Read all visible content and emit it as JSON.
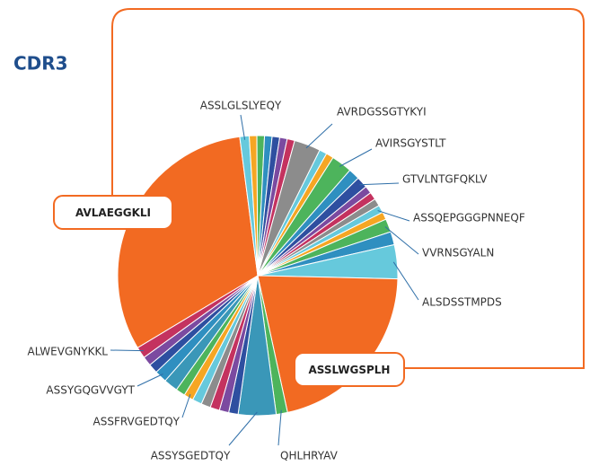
{
  "chart_data": {
    "type": "pie",
    "title": "CDR3",
    "categories": [
      "AVLAEGGKLI",
      "ASSLGLSLYEQY",
      null,
      null,
      null,
      null,
      null,
      null,
      "AVRDGSSGTYKYI",
      null,
      null,
      "AVIRSGYSTLT",
      null,
      "GTVLNTGFQKLV",
      null,
      null,
      null,
      "ASSQEPGGGPNNEQF",
      null,
      "VVRNSGYALN",
      null,
      "ALSDSSTMPDS",
      "ASSLWGSPLH",
      "QHLHRYAV",
      "ASSYSGEDTQY",
      null,
      null,
      null,
      null,
      null,
      "ASSFRVGEDTQY",
      null,
      null,
      "ASSYGQGVVGYT",
      null,
      null,
      "ALWEVGNYKKL"
    ],
    "values": [
      29,
      1,
      0.8,
      0.8,
      0.8,
      0.8,
      0.8,
      0.8,
      2.8,
      0.8,
      0.8,
      2.2,
      1.2,
      1.2,
      0.8,
      0.8,
      0.8,
      0.8,
      0.8,
      1.4,
      1.4,
      3.6,
      19.5,
      1.2,
      4,
      1,
      1,
      1,
      1,
      1,
      1,
      1,
      1.5,
      1.3,
      1,
      1,
      1.2
    ],
    "colors": [
      "#f26a22",
      "#66c9dc",
      "#f5a623",
      "#4db45c",
      "#2f8fc0",
      "#2e4fa0",
      "#7b4aa0",
      "#c4325f",
      "#8c8c8c",
      "#66c9dc",
      "#f5a623",
      "#4db45c",
      "#2f8fc0",
      "#2e4fa0",
      "#7b4aa0",
      "#c4325f",
      "#8c8c8c",
      "#66c9dc",
      "#f5a623",
      "#4db45c",
      "#2f8fc0",
      "#66c9dc",
      "#f26a22",
      "#4db45c",
      "#3a97b8",
      "#2e4fa0",
      "#7b4aa0",
      "#c4325f",
      "#8c8c8c",
      "#66c9dc",
      "#f5a623",
      "#4db45c",
      "#3a97b8",
      "#2f8fc0",
      "#2e4fa0",
      "#7b4aa0",
      "#c4325f"
    ]
  }
}
